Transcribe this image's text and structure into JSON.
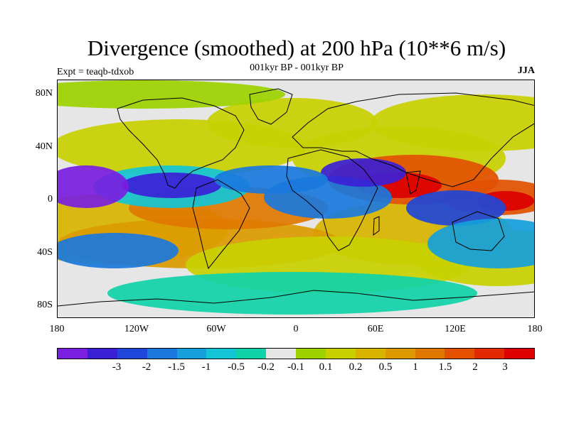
{
  "title": "Divergence (smoothed) at 200 hPa (10**6 m/s)",
  "subtitle": "001kyr BP - 001kyr BP",
  "experiment": "Expt = teaqb-tdxob",
  "season": "JJA",
  "lat_labels": [
    "80N",
    "40N",
    "0",
    "40S",
    "80S"
  ],
  "lon_labels": [
    "180",
    "120W",
    "60W",
    "0",
    "60E",
    "120E",
    "180"
  ],
  "colorbar": {
    "colors": [
      "#7a1ee0",
      "#3b1fd6",
      "#1e46d8",
      "#1a78dd",
      "#15a0dc",
      "#12c4d6",
      "#10d2a8",
      "#e6e6e6",
      "#9cd200",
      "#c8d000",
      "#d8b400",
      "#dc9a00",
      "#e07800",
      "#e25000",
      "#e22a00",
      "#dc0000"
    ],
    "labels": [
      "-3",
      "-2",
      "-1.5",
      "-1",
      "-0.5",
      "-0.2",
      "-0.1",
      "0.1",
      "0.2",
      "0.5",
      "1",
      "1.5",
      "2",
      "3"
    ]
  }
}
